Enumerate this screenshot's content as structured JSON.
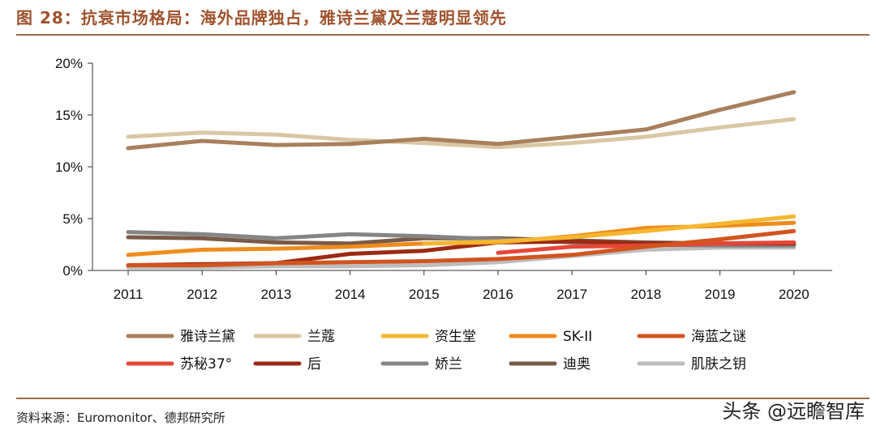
{
  "figure": {
    "title": "图 28：抗衰市场格局：海外品牌独占，雅诗兰黛及兰蔻明显领先",
    "source": "资料来源：Euromonitor、德邦研究所",
    "watermark": "头条 @远瞻智库"
  },
  "chart_data": {
    "type": "line",
    "title": "",
    "xlabel": "",
    "ylabel": "",
    "categories": [
      "2011",
      "2012",
      "2013",
      "2014",
      "2015",
      "2016",
      "2017",
      "2018",
      "2019",
      "2020"
    ],
    "ylim": [
      0,
      20
    ],
    "yticks": [
      0,
      5,
      10,
      15,
      20
    ],
    "ytick_labels": [
      "0%",
      "5%",
      "10%",
      "15%",
      "20%"
    ],
    "grid": false,
    "legend_position": "bottom",
    "series": [
      {
        "name": "雅诗兰黛",
        "color": "#a8805c",
        "values": [
          11.8,
          12.5,
          12.1,
          12.2,
          12.7,
          12.2,
          12.9,
          13.6,
          15.5,
          17.2
        ]
      },
      {
        "name": "兰蔻",
        "color": "#d9c7a4",
        "values": [
          12.9,
          13.3,
          13.1,
          12.6,
          12.3,
          11.9,
          12.3,
          12.9,
          13.8,
          14.6
        ]
      },
      {
        "name": "资生堂",
        "color": "#f5b730",
        "values": [
          null,
          null,
          null,
          null,
          2.6,
          2.8,
          3.2,
          3.8,
          4.5,
          5.2
        ]
      },
      {
        "name": "SK-II",
        "color": "#ef8c1c",
        "values": [
          1.5,
          2.0,
          2.1,
          2.3,
          2.6,
          2.7,
          3.3,
          4.1,
          4.3,
          4.6
        ]
      },
      {
        "name": "海蓝之谜",
        "color": "#d2541f",
        "values": [
          0.5,
          0.5,
          0.7,
          0.8,
          0.9,
          1.1,
          1.5,
          2.3,
          3.0,
          3.8
        ]
      },
      {
        "name": "苏秘37°",
        "color": "#e64637",
        "values": [
          null,
          null,
          null,
          null,
          null,
          1.7,
          2.3,
          2.4,
          2.6,
          2.7
        ]
      },
      {
        "name": "后",
        "color": "#9b2a12",
        "values": [
          0.5,
          0.6,
          0.7,
          1.6,
          1.9,
          2.7,
          2.8,
          2.6,
          2.6,
          2.6
        ]
      },
      {
        "name": "娇兰",
        "color": "#858585",
        "values": [
          3.7,
          3.5,
          3.1,
          3.5,
          3.3,
          3.0,
          2.7,
          2.5,
          2.4,
          2.4
        ]
      },
      {
        "name": "迪奥",
        "color": "#7a5a48",
        "values": [
          3.2,
          3.1,
          2.7,
          2.6,
          3.1,
          3.1,
          2.9,
          2.7,
          2.6,
          2.5
        ]
      },
      {
        "name": "肌肤之钥",
        "color": "#bdbdbd",
        "values": [
          0.3,
          0.3,
          0.4,
          0.4,
          0.5,
          0.8,
          1.4,
          2.0,
          2.2,
          2.2
        ]
      }
    ]
  }
}
